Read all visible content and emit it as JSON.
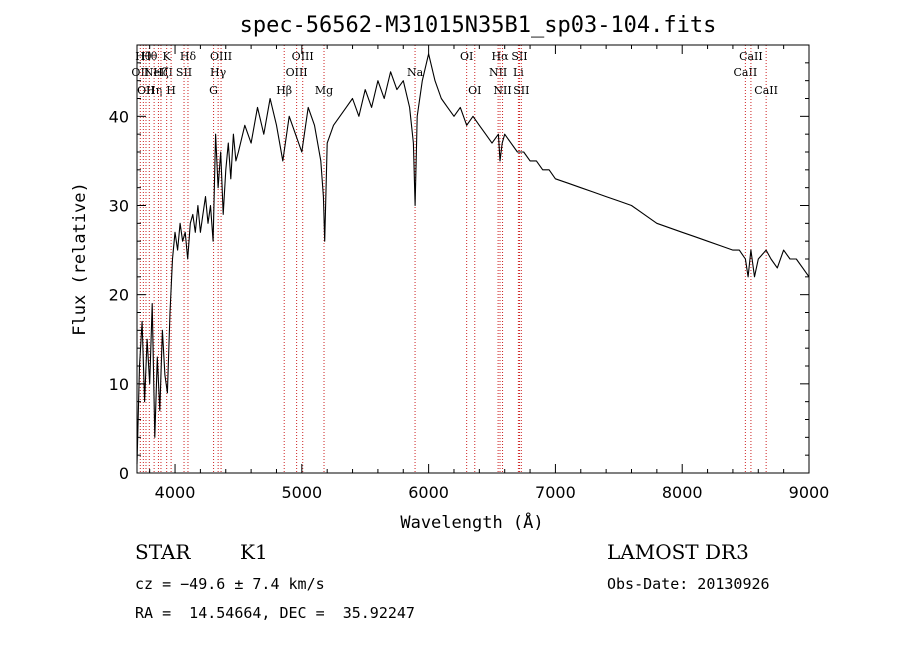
{
  "chart_data": {
    "type": "line",
    "title": "spec-56562-M31015N35B1_sp03-104.fits",
    "xlabel": "Wavelength (Å)",
    "ylabel": "Flux (relative)",
    "xlim": [
      3700,
      9000
    ],
    "ylim": [
      0,
      48
    ],
    "xticks": [
      4000,
      5000,
      6000,
      7000,
      8000,
      9000
    ],
    "yticks": [
      0,
      10,
      20,
      30,
      40
    ],
    "grid": false,
    "series": [
      {
        "name": "spectrum",
        "x": [
          3700,
          3720,
          3740,
          3760,
          3780,
          3800,
          3820,
          3840,
          3860,
          3880,
          3900,
          3920,
          3940,
          3960,
          3980,
          4000,
          4020,
          4040,
          4060,
          4080,
          4100,
          4120,
          4140,
          4160,
          4180,
          4200,
          4220,
          4240,
          4260,
          4280,
          4300,
          4320,
          4340,
          4360,
          4380,
          4400,
          4420,
          4440,
          4460,
          4480,
          4500,
          4550,
          4600,
          4650,
          4700,
          4750,
          4800,
          4850,
          4900,
          4950,
          5000,
          5050,
          5100,
          5150,
          5170,
          5180,
          5200,
          5250,
          5300,
          5350,
          5400,
          5450,
          5500,
          5550,
          5600,
          5650,
          5700,
          5750,
          5800,
          5850,
          5880,
          5893,
          5910,
          5950,
          6000,
          6050,
          6100,
          6150,
          6200,
          6250,
          6300,
          6350,
          6400,
          6450,
          6500,
          6550,
          6563,
          6580,
          6600,
          6650,
          6700,
          6750,
          6800,
          6850,
          6900,
          6950,
          7000,
          7100,
          7200,
          7300,
          7400,
          7500,
          7600,
          7700,
          7800,
          7900,
          8000,
          8100,
          8200,
          8300,
          8400,
          8450,
          8498,
          8520,
          8542,
          8570,
          8600,
          8662,
          8700,
          8750,
          8800,
          8850,
          8900,
          8950,
          9000
        ],
        "y": [
          1,
          12,
          17,
          8,
          15,
          10,
          19,
          4,
          13,
          7,
          16,
          11,
          9,
          18,
          24,
          27,
          25,
          28,
          26,
          27,
          24,
          28,
          29,
          27,
          30,
          27,
          29,
          31,
          28,
          30,
          26,
          38,
          32,
          36,
          29,
          34,
          37,
          33,
          38,
          35,
          36,
          39,
          37,
          41,
          38,
          42,
          39,
          35,
          40,
          38,
          36,
          41,
          39,
          35,
          31,
          26,
          37,
          39,
          40,
          41,
          42,
          40,
          43,
          41,
          44,
          42,
          45,
          43,
          44,
          41,
          37,
          30,
          40,
          44,
          47,
          44,
          42,
          41,
          40,
          41,
          39,
          40,
          39,
          38,
          37,
          38,
          35,
          37,
          38,
          37,
          36,
          36,
          35,
          35,
          34,
          34,
          33,
          32.5,
          32,
          31.5,
          31,
          30.5,
          30,
          29,
          28,
          27.5,
          27,
          26.5,
          26,
          25.5,
          25,
          25,
          24,
          22,
          25,
          22,
          24,
          25,
          24,
          23,
          25,
          24,
          24,
          23,
          22
        ]
      }
    ],
    "lines": [
      {
        "x": 3726,
        "label": "OII",
        "row": 2
      },
      {
        "x": 3750,
        "label": "Hθ",
        "row": 1
      },
      {
        "x": 3771,
        "label": "OII",
        "row": 3
      },
      {
        "x": 3797,
        "label": "Hθ",
        "row": 1
      },
      {
        "x": 3835,
        "label": "Hη",
        "row": 3
      },
      {
        "x": 3869,
        "label": "NeIII",
        "row": 2
      },
      {
        "x": 3889,
        "label": "Hζ",
        "row": 2
      },
      {
        "x": 3934,
        "label": "K",
        "row": 1
      },
      {
        "x": 3969,
        "label": "H",
        "row": 3
      },
      {
        "x": 4071,
        "label": "SII",
        "row": 2
      },
      {
        "x": 4102,
        "label": "Hδ",
        "row": 1
      },
      {
        "x": 4304,
        "label": "G",
        "row": 3
      },
      {
        "x": 4340,
        "label": "Hγ",
        "row": 2
      },
      {
        "x": 4363,
        "label": "OIII",
        "row": 1
      },
      {
        "x": 4861,
        "label": "Hβ",
        "row": 3
      },
      {
        "x": 4959,
        "label": "OIII",
        "row": 2
      },
      {
        "x": 5007,
        "label": "OIII",
        "row": 1
      },
      {
        "x": 5175,
        "label": "Mg",
        "row": 3
      },
      {
        "x": 5893,
        "label": "Na",
        "row": 2
      },
      {
        "x": 6300,
        "label": "OI",
        "row": 1
      },
      {
        "x": 6364,
        "label": "OI",
        "row": 3
      },
      {
        "x": 6548,
        "label": "NII",
        "row": 2
      },
      {
        "x": 6563,
        "label": "Hα",
        "row": 1
      },
      {
        "x": 6583,
        "label": "NII",
        "row": 3
      },
      {
        "x": 6708,
        "label": "Li",
        "row": 2
      },
      {
        "x": 6717,
        "label": "SII",
        "row": 1
      },
      {
        "x": 6731,
        "label": "SII",
        "row": 3
      },
      {
        "x": 8498,
        "label": "CaII",
        "row": 2
      },
      {
        "x": 8542,
        "label": "CaII",
        "row": 1
      },
      {
        "x": 8662,
        "label": "CaII",
        "row": 3
      }
    ]
  },
  "info": {
    "class_label": "STAR",
    "subclass": "K1",
    "survey": "LAMOST DR3",
    "redshift": "cz = −49.6 ± 7.4 km/s",
    "obs_date": "Obs-Date: 20130926",
    "coords": "RA =  14.54664, DEC =  35.92247"
  },
  "colors": {
    "line_marker": "#cc2222",
    "spectrum": "#000000"
  }
}
